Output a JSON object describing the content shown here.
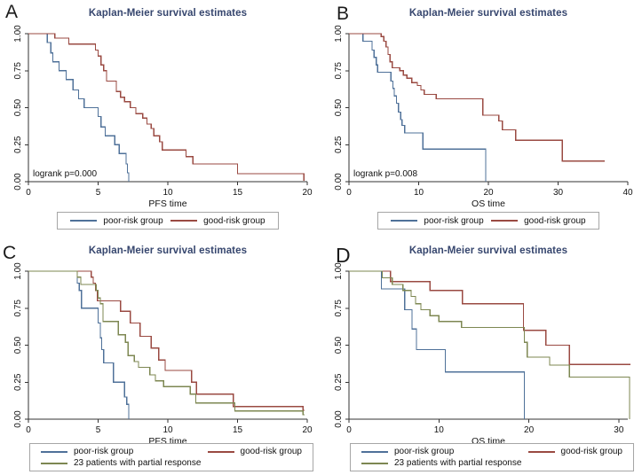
{
  "colors": {
    "poor_risk": "#4f7199",
    "good_risk": "#9a4a42",
    "partial_response": "#7d8752",
    "title": "#36466e",
    "axis": "#333333",
    "text": "#111111",
    "legend_border": "#a6a6a6",
    "background": "#ffffff"
  },
  "chart_data": [
    {
      "type": "line",
      "panel_label": "A",
      "title": "Kaplan-Meier survival estimates",
      "xlabel": "PFS time",
      "xlim": [
        0,
        20
      ],
      "xticks": [
        0,
        5,
        10,
        15,
        20
      ],
      "ylim": [
        0,
        1
      ],
      "yticks": [
        {
          "v": 0,
          "label": "0.00"
        },
        {
          "v": 0.25,
          "label": "0.25"
        },
        {
          "v": 0.5,
          "label": "0.50"
        },
        {
          "v": 0.75,
          "label": "0.75"
        },
        {
          "v": 1,
          "label": "1.00"
        }
      ],
      "grid": false,
      "annotation": "logrank p=0.000",
      "legend_position": "bottom-center",
      "legend_rows": [
        [
          "poor",
          "good"
        ]
      ],
      "series": [
        {
          "key": "poor",
          "name": "poor-risk group",
          "color": "#4f7199",
          "start_t": 0,
          "start_v": 1.0,
          "end_t": 7.2,
          "steps": [
            [
              1.35,
              0.94
            ],
            [
              1.6,
              0.87
            ],
            [
              1.75,
              0.81
            ],
            [
              2.2,
              0.75
            ],
            [
              2.7,
              0.69
            ],
            [
              3.2,
              0.62
            ],
            [
              3.6,
              0.56
            ],
            [
              4.0,
              0.5
            ],
            [
              5.0,
              0.44
            ],
            [
              5.2,
              0.37
            ],
            [
              5.5,
              0.31
            ],
            [
              6.2,
              0.25
            ],
            [
              6.5,
              0.19
            ],
            [
              7.0,
              0.12
            ],
            [
              7.1,
              0.06
            ],
            [
              7.2,
              0.0
            ]
          ]
        },
        {
          "key": "good",
          "name": "good-risk group",
          "color": "#9a4a42",
          "start_t": 0,
          "start_v": 1.0,
          "end_t": 19.8,
          "steps": [
            [
              1.9,
              0.97
            ],
            [
              2.9,
              0.93
            ],
            [
              4.8,
              0.89
            ],
            [
              5.0,
              0.85
            ],
            [
              5.2,
              0.79
            ],
            [
              5.4,
              0.75
            ],
            [
              5.6,
              0.68
            ],
            [
              6.3,
              0.61
            ],
            [
              6.6,
              0.57
            ],
            [
              6.9,
              0.54
            ],
            [
              7.3,
              0.5
            ],
            [
              7.7,
              0.46
            ],
            [
              8.2,
              0.43
            ],
            [
              8.5,
              0.39
            ],
            [
              8.8,
              0.36
            ],
            [
              9.0,
              0.31
            ],
            [
              9.4,
              0.27
            ],
            [
              9.6,
              0.215
            ],
            [
              11.3,
              0.17
            ],
            [
              11.8,
              0.12
            ],
            [
              15.0,
              0.054
            ],
            [
              19.75,
              0.01
            ]
          ]
        }
      ]
    },
    {
      "type": "line",
      "panel_label": "B",
      "title": "Kaplan-Meier survival estimates",
      "xlabel": "OS time",
      "xlim": [
        0,
        40
      ],
      "xticks": [
        0,
        10,
        20,
        30,
        40
      ],
      "ylim": [
        0,
        1
      ],
      "yticks": [
        {
          "v": 0,
          "label": "0.00"
        },
        {
          "v": 0.25,
          "label": "0.25"
        },
        {
          "v": 0.5,
          "label": "0.50"
        },
        {
          "v": 0.75,
          "label": "0.75"
        },
        {
          "v": 1,
          "label": "1.00"
        }
      ],
      "grid": false,
      "annotation": "logrank p=0.008",
      "legend_position": "bottom-center",
      "legend_rows": [
        [
          "poor",
          "good"
        ]
      ],
      "series": [
        {
          "key": "poor",
          "name": "poor-risk group",
          "color": "#4f7199",
          "start_t": 0,
          "start_v": 1.0,
          "end_t": 19.6,
          "steps": [
            [
              2.0,
              0.95
            ],
            [
              3.3,
              0.89
            ],
            [
              3.6,
              0.84
            ],
            [
              3.9,
              0.79
            ],
            [
              4.1,
              0.74
            ],
            [
              6.0,
              0.68
            ],
            [
              6.3,
              0.63
            ],
            [
              6.5,
              0.58
            ],
            [
              6.8,
              0.53
            ],
            [
              7.1,
              0.47
            ],
            [
              7.4,
              0.42
            ],
            [
              7.6,
              0.38
            ],
            [
              8.0,
              0.33
            ],
            [
              10.6,
              0.22
            ],
            [
              19.6,
              0.0
            ]
          ]
        },
        {
          "key": "good",
          "name": "good-risk group",
          "color": "#9a4a42",
          "start_t": 0,
          "start_v": 1.0,
          "end_t": 36.7,
          "steps": [
            [
              4.6,
              0.98
            ],
            [
              5.0,
              0.95
            ],
            [
              5.3,
              0.91
            ],
            [
              5.6,
              0.86
            ],
            [
              5.9,
              0.81
            ],
            [
              6.2,
              0.77
            ],
            [
              7.3,
              0.75
            ],
            [
              7.8,
              0.72
            ],
            [
              8.3,
              0.7
            ],
            [
              9.0,
              0.67
            ],
            [
              9.8,
              0.65
            ],
            [
              10.3,
              0.62
            ],
            [
              10.8,
              0.59
            ],
            [
              12.5,
              0.56
            ],
            [
              19.2,
              0.45
            ],
            [
              21.5,
              0.41
            ],
            [
              22.0,
              0.35
            ],
            [
              23.9,
              0.28
            ],
            [
              30.6,
              0.14
            ]
          ]
        }
      ]
    },
    {
      "type": "line",
      "panel_label": "C",
      "title": "Kaplan-Meier survival estimates",
      "xlabel": "PFS time",
      "xlim": [
        0,
        20
      ],
      "xticks": [
        0,
        5,
        10,
        15,
        20
      ],
      "ylim": [
        0,
        1
      ],
      "yticks": [
        {
          "v": 0,
          "label": "0.00"
        },
        {
          "v": 0.25,
          "label": "0.25"
        },
        {
          "v": 0.5,
          "label": "0.50"
        },
        {
          "v": 0.75,
          "label": "0.75"
        },
        {
          "v": 1,
          "label": "1.00"
        }
      ],
      "grid": false,
      "annotation": "",
      "legend_position": "bottom-center",
      "legend_rows": [
        [
          "poor",
          "good"
        ],
        [
          "partial"
        ]
      ],
      "series": [
        {
          "key": "poor",
          "name": "poor-risk group",
          "color": "#4f7199",
          "start_t": 0,
          "start_v": 1.0,
          "end_t": 7.2,
          "steps": [
            [
              3.5,
              0.92
            ],
            [
              3.65,
              0.87
            ],
            [
              3.8,
              0.75
            ],
            [
              5.0,
              0.65
            ],
            [
              5.15,
              0.55
            ],
            [
              5.25,
              0.47
            ],
            [
              5.4,
              0.38
            ],
            [
              6.1,
              0.25
            ],
            [
              6.9,
              0.15
            ],
            [
              7.05,
              0.1
            ],
            [
              7.2,
              0.0
            ]
          ]
        },
        {
          "key": "good",
          "name": "good-risk group",
          "color": "#9a4a42",
          "start_t": 0,
          "start_v": 1.0,
          "end_t": 19.8,
          "steps": [
            [
              4.5,
              0.96
            ],
            [
              4.65,
              0.92
            ],
            [
              4.8,
              0.87
            ],
            [
              4.95,
              0.8
            ],
            [
              6.6,
              0.73
            ],
            [
              7.3,
              0.65
            ],
            [
              8.0,
              0.56
            ],
            [
              8.8,
              0.48
            ],
            [
              9.35,
              0.4
            ],
            [
              9.8,
              0.33
            ],
            [
              11.7,
              0.25
            ],
            [
              12.05,
              0.17
            ],
            [
              14.7,
              0.085
            ],
            [
              19.7,
              0.06
            ]
          ]
        },
        {
          "key": "partial",
          "name": "23 patients with partial response",
          "color": "#7d8752",
          "start_t": 0,
          "start_v": 1.0,
          "end_t": 19.8,
          "steps": [
            [
              3.5,
              0.96
            ],
            [
              3.75,
              0.91
            ],
            [
              4.85,
              0.87
            ],
            [
              5.0,
              0.82
            ],
            [
              5.15,
              0.78
            ],
            [
              5.35,
              0.66
            ],
            [
              6.45,
              0.57
            ],
            [
              6.95,
              0.52
            ],
            [
              7.15,
              0.43
            ],
            [
              7.6,
              0.39
            ],
            [
              7.9,
              0.35
            ],
            [
              8.7,
              0.3
            ],
            [
              9.1,
              0.26
            ],
            [
              9.7,
              0.22
            ],
            [
              11.6,
              0.17
            ],
            [
              12.0,
              0.11
            ],
            [
              14.8,
              0.055
            ],
            [
              19.7,
              0.03
            ]
          ]
        }
      ]
    },
    {
      "type": "line",
      "panel_label": "D",
      "title": "Kaplan-Meier survival estimates",
      "xlabel": "OS time",
      "xlim": [
        0,
        31
      ],
      "xticks": [
        0,
        10,
        20,
        30
      ],
      "ylim": [
        0,
        1
      ],
      "yticks": [
        {
          "v": 0,
          "label": "0.00"
        },
        {
          "v": 0.25,
          "label": "0.25"
        },
        {
          "v": 0.5,
          "label": "0.50"
        },
        {
          "v": 0.75,
          "label": "0.75"
        },
        {
          "v": 1,
          "label": "1.00"
        }
      ],
      "grid": false,
      "annotation": "",
      "legend_position": "bottom-center",
      "legend_rows": [
        [
          "poor",
          "good"
        ],
        [
          "partial"
        ]
      ],
      "series": [
        {
          "key": "poor",
          "name": "poor-risk group",
          "color": "#4f7199",
          "start_t": 0,
          "start_v": 1.0,
          "end_t": 19.5,
          "steps": [
            [
              3.6,
              0.88
            ],
            [
              6.2,
              0.74
            ],
            [
              7.0,
              0.61
            ],
            [
              7.5,
              0.47
            ],
            [
              10.7,
              0.32
            ],
            [
              19.5,
              0.0
            ]
          ]
        },
        {
          "key": "good",
          "name": "good-risk group",
          "color": "#9a4a42",
          "start_t": 0,
          "start_v": 1.0,
          "end_t": 31.3,
          "steps": [
            [
              4.6,
              0.93
            ],
            [
              9.0,
              0.87
            ],
            [
              12.6,
              0.78
            ],
            [
              19.4,
              0.6
            ],
            [
              21.9,
              0.5
            ],
            [
              24.5,
              0.37
            ]
          ]
        },
        {
          "key": "partial",
          "name": "23 patients with partial response",
          "color": "#7d8752",
          "start_t": 0,
          "start_v": 1.0,
          "end_t": 31.2,
          "steps": [
            [
              3.7,
              0.955
            ],
            [
              4.8,
              0.91
            ],
            [
              6.0,
              0.87
            ],
            [
              6.9,
              0.83
            ],
            [
              7.4,
              0.78
            ],
            [
              8.0,
              0.74
            ],
            [
              9.0,
              0.7
            ],
            [
              10.0,
              0.66
            ],
            [
              12.5,
              0.62
            ],
            [
              19.5,
              0.52
            ],
            [
              19.8,
              0.42
            ],
            [
              22.3,
              0.365
            ],
            [
              24.5,
              0.285
            ],
            [
              31.2,
              0.0
            ]
          ]
        }
      ]
    }
  ]
}
